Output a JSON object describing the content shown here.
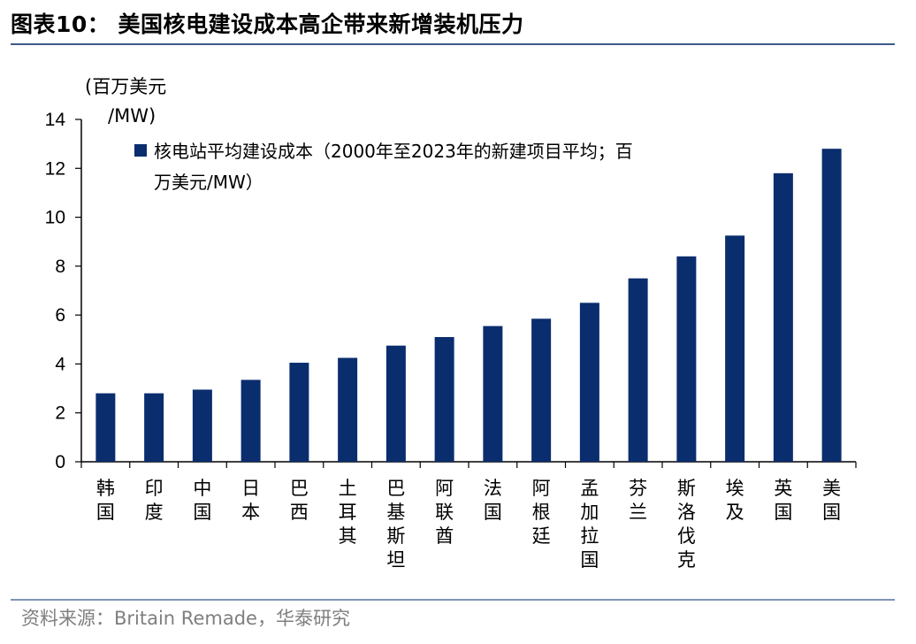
{
  "header": {
    "title": "图表10：  美国核电建设成本高企带来新增装机压力"
  },
  "footer": {
    "source": "资料来源：Britain Remade，华泰研究"
  },
  "chart_data": {
    "type": "bar",
    "unit_label_line1": "(百万美元",
    "unit_label_line2": "/MW)",
    "categories": [
      "韩国",
      "印度",
      "中国",
      "日本",
      "巴西",
      "土耳其",
      "巴基斯坦",
      "阿联酋",
      "法国",
      "阿根廷",
      "孟加拉国",
      "芬兰",
      "斯洛伐克",
      "埃及",
      "英国",
      "美国"
    ],
    "series": [
      {
        "name": "核电站平均建设成本（2000年至2023年的新建项目平均；百万美元/MW）",
        "legend_line1": "核电站平均建设成本（2000年至2023年的新建项目平均；百",
        "legend_line2": "万美元/MW）",
        "values": [
          2.8,
          2.8,
          2.95,
          3.35,
          4.05,
          4.25,
          4.75,
          5.1,
          5.55,
          5.85,
          6.5,
          7.5,
          8.4,
          9.25,
          11.8,
          12.8
        ],
        "color": "#0a2d6e"
      }
    ],
    "ylim": [
      0,
      14
    ],
    "yticks": [
      "0",
      "2",
      "4",
      "6",
      "8",
      "10",
      "12",
      "14"
    ],
    "legend_position": "top-left",
    "grid": false
  }
}
